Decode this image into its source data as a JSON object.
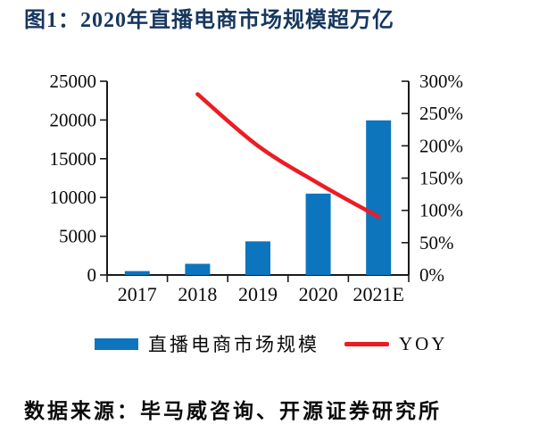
{
  "title": "图1：2020年直播电商市场规模超万亿",
  "source": "数据来源：毕马威咨询、开源证券研究所",
  "colors": {
    "bar": "#0D75BE",
    "line": "#EC1C24",
    "title_text": "#17375E",
    "axis": "#1A1A1A",
    "text": "#0A0A0A"
  },
  "legend": {
    "items": [
      {
        "marker": "bar-swatch",
        "label": "直播电商市场规模"
      },
      {
        "marker": "line-swatch",
        "label": "YOY"
      }
    ]
  },
  "chart_data": {
    "type": "bar",
    "subtype": "combo-bar-line",
    "title": "2020年直播电商市场规模超万亿",
    "categories": [
      "2017",
      "2018",
      "2019",
      "2020",
      "2021E"
    ],
    "series": [
      {
        "name": "直播电商市场规模",
        "type": "bar",
        "axis": "left",
        "values": [
          500,
          1445,
          4338,
          10500,
          19950
        ]
      },
      {
        "name": "YOY",
        "type": "line",
        "axis": "right",
        "unit": "%",
        "values": [
          null,
          280,
          200,
          142,
          90
        ]
      }
    ],
    "left_axis": {
      "min": 0,
      "max": 25000,
      "step": 5000,
      "tick_labels": [
        "0",
        "5000",
        "10000",
        "15000",
        "20000",
        "25000"
      ]
    },
    "right_axis": {
      "min": 0,
      "max": 300,
      "step": 50,
      "tick_labels": [
        "0%",
        "50%",
        "100%",
        "150%",
        "200%",
        "250%",
        "300%"
      ]
    },
    "grid": false,
    "legend_position": "bottom"
  }
}
